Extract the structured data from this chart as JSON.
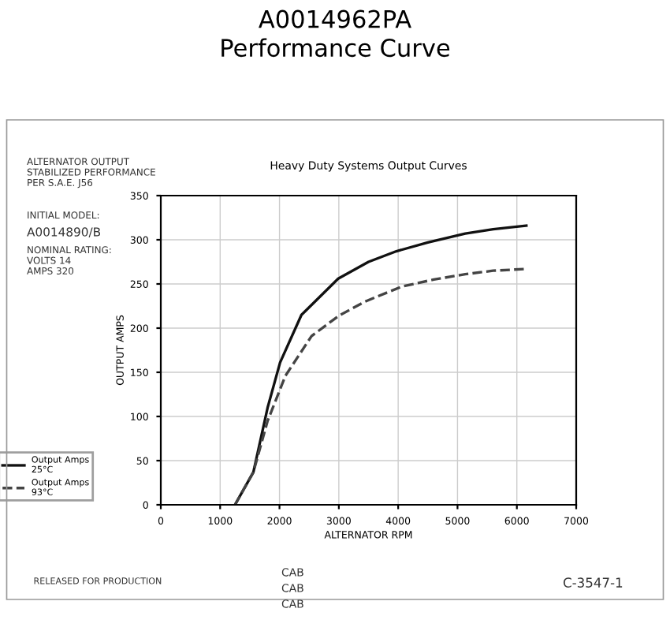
{
  "chart_data": {
    "type": "line",
    "title": "A0014962PA\nPerformance Curve",
    "subtitle": "Heavy Duty Systems Output Curves",
    "xlabel": "ALTERNATOR RPM",
    "ylabel": "OUTPUT AMPS",
    "xlim": [
      0,
      7000
    ],
    "xticks": [
      0,
      1000,
      2000,
      3000,
      4000,
      5000,
      6000,
      7000
    ],
    "ylim": [
      0,
      350
    ],
    "yticks": [
      0,
      50,
      100,
      150,
      200,
      250,
      300,
      350
    ],
    "grid": true,
    "legend": "left",
    "series": [
      {
        "name": "Output Amps\n25°C",
        "color": "#111111",
        "line_style": "solid",
        "x": [
          1250,
          1560,
          1800,
          2010,
          2370,
          2990,
          3500,
          3970,
          4500,
          5130,
          5600,
          6160
        ],
        "values": [
          0,
          37,
          110,
          161,
          215,
          256,
          275,
          287,
          297,
          307,
          312,
          316
        ]
      },
      {
        "name": "Output Amps\n93°C",
        "color": "#444444",
        "line_style": "dashed",
        "x": [
          1250,
          1560,
          1800,
          2100,
          2540,
          3000,
          3440,
          4060,
          4600,
          5130,
          5600,
          6160
        ],
        "values": [
          0,
          37,
          95,
          146,
          191,
          214,
          230,
          247,
          255,
          261,
          265,
          267
        ]
      }
    ],
    "annotations": [
      "ALTERNATOR OUTPUT\nSTABILIZED PERFORMANCE\nPER S.A.E. J56",
      "INITIAL MODEL:",
      "A0014890/B",
      "NOMINAL RATING:\nVOLTS 14\nAMPS 320",
      "RELEASED FOR PRODUCTION",
      "CAB",
      "CAB",
      "CAB",
      "C-3547-1"
    ]
  }
}
